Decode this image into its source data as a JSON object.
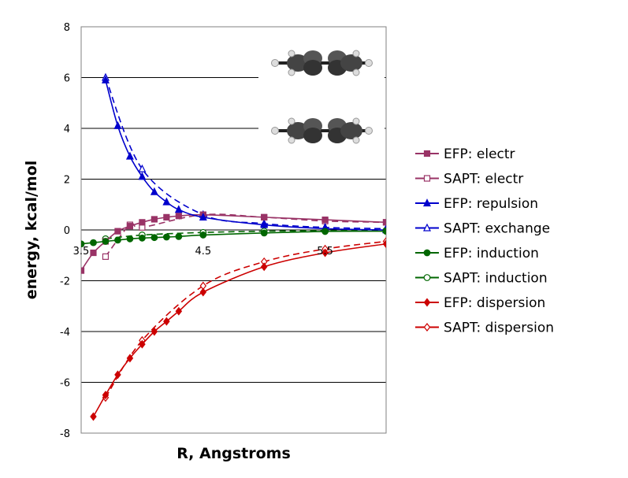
{
  "chart_data": {
    "type": "line",
    "xlabel": "R, Angstroms",
    "ylabel": "energy, kcal/mol",
    "xlim": [
      3.5,
      6.0
    ],
    "ylim": [
      -8,
      8
    ],
    "x_ticks": [
      {
        "value": 3.5,
        "label": "3.5"
      },
      {
        "value": 4.5,
        "label": "4.5"
      },
      {
        "value": 5.5,
        "label": "5.5"
      }
    ],
    "y_ticks": [
      {
        "value": 8,
        "label": "8"
      },
      {
        "value": 6,
        "label": "6"
      },
      {
        "value": 4,
        "label": "4"
      },
      {
        "value": 2,
        "label": "2"
      },
      {
        "value": 0,
        "label": "0"
      },
      {
        "value": -2,
        "label": "-2"
      },
      {
        "value": -4,
        "label": "-4"
      },
      {
        "value": -6,
        "label": "-6"
      },
      {
        "value": -8,
        "label": "-8"
      }
    ],
    "grid": "horizontal",
    "legend_position": "right",
    "series": [
      {
        "name": "EFP: electr",
        "color": "#993366",
        "marker": "square",
        "filled": true,
        "dashed": false,
        "x": [
          3.5,
          3.6,
          3.7,
          3.8,
          3.9,
          4.0,
          4.1,
          4.2,
          4.3,
          4.5,
          5.0,
          5.5,
          6.0
        ],
        "y": [
          -1.6,
          -0.9,
          -0.45,
          -0.05,
          0.15,
          0.3,
          0.42,
          0.5,
          0.55,
          0.6,
          0.5,
          0.4,
          0.3
        ]
      },
      {
        "name": " SAPT: electr",
        "color": "#993366",
        "marker": "square",
        "filled": false,
        "dashed": true,
        "x": [
          3.7,
          3.9,
          4.0,
          4.5,
          5.0,
          5.5,
          6.0
        ],
        "y": [
          -1.05,
          0.2,
          0.1,
          0.6,
          0.5,
          0.35,
          0.3
        ]
      },
      {
        "name": "EFP: repulsion",
        "color": "#0000CC",
        "marker": "triangle",
        "filled": true,
        "dashed": false,
        "x": [
          3.7,
          3.8,
          3.9,
          4.0,
          4.1,
          4.2,
          4.3,
          4.5,
          5.0,
          5.5,
          6.0
        ],
        "y": [
          5.9,
          4.1,
          2.9,
          2.1,
          1.5,
          1.1,
          0.8,
          0.5,
          0.2,
          0.05,
          0.0
        ]
      },
      {
        "name": "SAPT: exchange",
        "color": "#0000CC",
        "marker": "triangle",
        "filled": false,
        "dashed": true,
        "x": [
          3.7,
          4.0,
          4.5,
          5.0,
          5.5,
          6.0
        ],
        "y": [
          6.0,
          2.4,
          0.6,
          0.25,
          0.1,
          0.05
        ]
      },
      {
        "name": "EFP: induction",
        "color": "#006600",
        "marker": "circle",
        "filled": true,
        "dashed": false,
        "x": [
          3.5,
          3.6,
          3.7,
          3.8,
          3.9,
          4.0,
          4.1,
          4.2,
          4.3,
          4.5,
          5.0,
          5.5,
          6.0
        ],
        "y": [
          -0.55,
          -0.5,
          -0.45,
          -0.4,
          -0.35,
          -0.32,
          -0.3,
          -0.28,
          -0.26,
          -0.2,
          -0.12,
          -0.06,
          -0.05
        ]
      },
      {
        "name": "SAPT: induction",
        "color": "#006600",
        "marker": "circle",
        "filled": false,
        "dashed": true,
        "x": [
          3.7,
          4.0,
          4.5,
          5.0,
          5.5,
          6.0
        ],
        "y": [
          -0.35,
          -0.2,
          -0.1,
          -0.05,
          -0.03,
          -0.02
        ]
      },
      {
        "name": "EFP: dispersion",
        "color": "#CC0000",
        "marker": "diamond",
        "filled": true,
        "dashed": false,
        "x": [
          3.6,
          3.7,
          3.8,
          3.9,
          4.0,
          4.1,
          4.2,
          4.3,
          4.5,
          5.0,
          5.5,
          6.0
        ],
        "y": [
          -7.35,
          -6.5,
          -5.7,
          -5.05,
          -4.5,
          -4.0,
          -3.6,
          -3.2,
          -2.45,
          -1.45,
          -0.9,
          -0.55
        ]
      },
      {
        "name": "SAPT: dispersion",
        "color": "#CC0000",
        "marker": "diamond",
        "filled": false,
        "dashed": true,
        "x": [
          3.7,
          4.0,
          4.5,
          5.0,
          5.5,
          6.0
        ],
        "y": [
          -6.6,
          -4.35,
          -2.2,
          -1.25,
          -0.75,
          -0.45
        ]
      }
    ]
  }
}
